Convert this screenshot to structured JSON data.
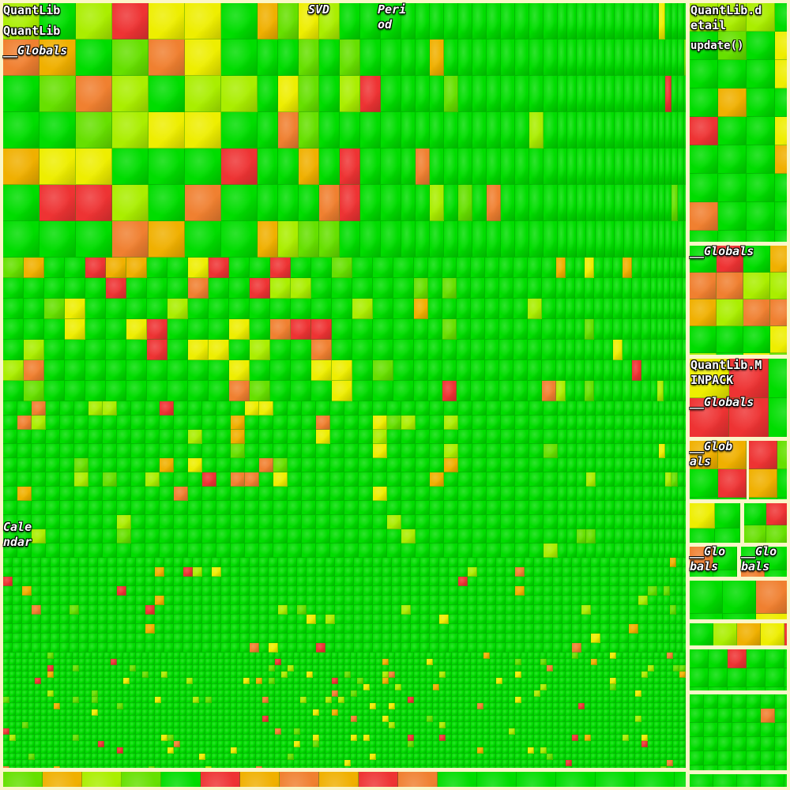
{
  "chart_data": {
    "type": "treemap",
    "color_scale": {
      "low": "#00dd00",
      "mid": "#eeee00",
      "high": "#ee3333"
    },
    "labels": [
      {
        "text": "QuantLib"
      },
      {
        "text": "QuantLib"
      },
      {
        "text": "__Globals"
      },
      {
        "text": "SVD"
      },
      {
        "text": "Peri\nod"
      },
      {
        "text": "QuantLib.d\netail"
      },
      {
        "text": "update()"
      },
      {
        "text": "__Globals"
      },
      {
        "text": "QuantLib.M\nINPACK"
      },
      {
        "text": "__Globals"
      },
      {
        "text": "__Glob\nals"
      },
      {
        "text": "__Glo\nbals"
      },
      {
        "text": "__Glo\nbals"
      },
      {
        "text": "Cale\nndar"
      }
    ]
  }
}
